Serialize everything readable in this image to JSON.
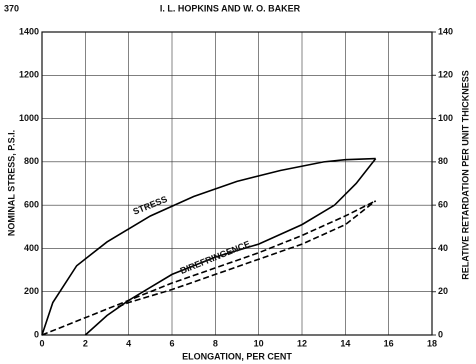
{
  "page_number": "370",
  "running_head": "I. L. HOPKINS AND W. O. BAKER",
  "chart_data": {
    "type": "line",
    "xlabel": "ELONGATION, PER CENT",
    "ylabel": "NOMINAL STRESS, P.S.I.",
    "y2label": "RELATIVE RETARDATION PER UNIT THICKNESS",
    "xlim": [
      0,
      18
    ],
    "xticks": [
      0,
      2,
      4,
      6,
      8,
      10,
      12,
      14,
      16,
      18
    ],
    "ylim": [
      0,
      1400
    ],
    "yticks": [
      0,
      200,
      400,
      600,
      800,
      1000,
      1200,
      1400
    ],
    "y2lim": [
      0,
      140
    ],
    "y2ticks": [
      0,
      20,
      40,
      60,
      80,
      100,
      120,
      140
    ],
    "grid": true,
    "series": [
      {
        "name": "STRESS",
        "color": "#000000",
        "x": [
          0,
          0.5,
          1.6,
          3,
          5,
          7,
          9,
          11,
          13,
          14,
          15.4
        ],
        "values": [
          0,
          150,
          320,
          430,
          550,
          640,
          710,
          760,
          800,
          810,
          815
        ]
      },
      {
        "color": "#000000",
        "x": [
          2,
          3,
          4,
          6,
          8,
          10,
          12,
          13.5,
          14.5,
          15.4
        ],
        "values": [
          0,
          90,
          160,
          280,
          360,
          420,
          510,
          600,
          700,
          815
        ]
      },
      {
        "name": "BIREFRINGENCE",
        "color": "#000000",
        "axis": "y2",
        "x": [
          0,
          2,
          4,
          6,
          8,
          10,
          12,
          14,
          15.4
        ],
        "values": [
          0,
          8,
          16,
          24,
          31,
          38,
          46,
          55,
          62
        ]
      },
      {
        "color": "#000000",
        "axis": "y2",
        "x": [
          3.5,
          4,
          6,
          8,
          10,
          12,
          14,
          15.4
        ],
        "values": [
          13,
          15,
          21,
          28,
          35,
          42,
          51,
          62
        ]
      }
    ]
  }
}
